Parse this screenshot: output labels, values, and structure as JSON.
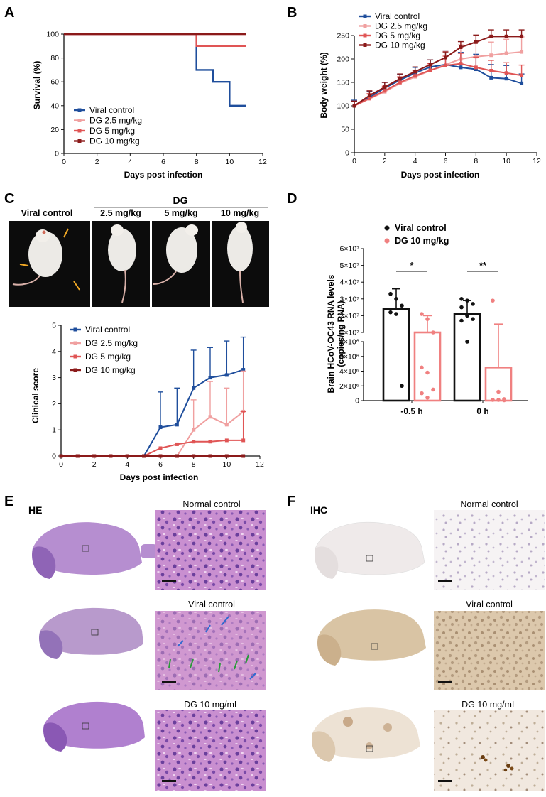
{
  "panels": {
    "A": {
      "label": "A",
      "chart_data": {
        "type": "line",
        "step": true,
        "xlabel": "Days post infection",
        "ylabel": "Survival (%)",
        "xlim": [
          0,
          12
        ],
        "ylim": [
          0,
          100
        ],
        "xticks": [
          0,
          2,
          4,
          6,
          8,
          10,
          12
        ],
        "yticks": [
          0,
          20,
          40,
          60,
          80,
          100
        ],
        "legend_position": "bottom-left",
        "series": [
          {
            "name": "Viral control",
            "color": "#1f4e9c",
            "x": [
              0,
              8,
              9,
              10,
              11
            ],
            "y": [
              100,
              70,
              60,
              40,
              40
            ]
          },
          {
            "name": "DG 2.5 mg/kg",
            "color": "#f0a0a0",
            "x": [
              0,
              8,
              11
            ],
            "y": [
              100,
              100,
              100
            ]
          },
          {
            "name": "DG 5 mg/kg",
            "color": "#e05555",
            "x": [
              0,
              8,
              10,
              11
            ],
            "y": [
              100,
              90,
              90,
              90
            ]
          },
          {
            "name": "DG 10 mg/kg",
            "color": "#8b1a1a",
            "x": [
              0,
              11
            ],
            "y": [
              100,
              100
            ]
          }
        ]
      }
    },
    "B": {
      "label": "B",
      "chart_data": {
        "type": "line",
        "xlabel": "Days post infection",
        "ylabel": "Body weight (%)",
        "xlim": [
          0,
          12
        ],
        "ylim": [
          0,
          250
        ],
        "xticks": [
          0,
          2,
          4,
          6,
          8,
          10,
          12
        ],
        "yticks": [
          0,
          50,
          100,
          150,
          200,
          250
        ],
        "legend_position": "top-left",
        "x": [
          0,
          1,
          2,
          3,
          4,
          5,
          6,
          7,
          8,
          9,
          10,
          11
        ],
        "series": [
          {
            "name": "Viral control",
            "color": "#1f4e9c",
            "y": [
              100,
              118,
              138,
              155,
              170,
              183,
              188,
              182,
              178,
              160,
              158,
              148
            ],
            "err": [
              12,
              12,
              12,
              12,
              12,
              15,
              28,
              32,
              32,
              28,
              28,
              20
            ]
          },
          {
            "name": "DG 2.5 mg/kg",
            "color": "#f0a0a0",
            "y": [
              100,
              115,
              130,
              148,
              162,
              175,
              188,
              200,
              205,
              208,
              212,
              215
            ],
            "err": [
              10,
              10,
              10,
              12,
              12,
              15,
              28,
              30,
              30,
              28,
              30,
              32
            ]
          },
          {
            "name": "DG 5 mg/kg",
            "color": "#e05555",
            "y": [
              100,
              116,
              132,
              150,
              164,
              176,
              186,
              190,
              182,
              175,
              170,
              165
            ],
            "err": [
              10,
              10,
              10,
              12,
              12,
              14,
              20,
              22,
              22,
              22,
              22,
              22
            ]
          },
          {
            "name": "DG 10 mg/kg",
            "color": "#8b1a1a",
            "y": [
              100,
              122,
              140,
              158,
              173,
              188,
              203,
              225,
              236,
              248,
              248,
              248
            ],
            "err": [
              10,
              10,
              10,
              10,
              10,
              10,
              12,
              12,
              15,
              14,
              14,
              14
            ]
          }
        ]
      }
    },
    "C": {
      "label": "C",
      "group_label": "DG",
      "photo_labels": [
        "Viral control",
        "2.5 mg/kg",
        "5 mg/kg",
        "10 mg/kg"
      ],
      "chart_data": {
        "type": "line",
        "xlabel": "Days post infection",
        "ylabel": "Clinical score",
        "xlim": [
          0,
          12
        ],
        "ylim": [
          0,
          5
        ],
        "xticks": [
          0,
          2,
          4,
          6,
          8,
          10,
          12
        ],
        "yticks": [
          0,
          1,
          2,
          3,
          4,
          5
        ],
        "legend_position": "top-left",
        "x": [
          0,
          1,
          2,
          3,
          4,
          5,
          6,
          7,
          8,
          9,
          10,
          11
        ],
        "series": [
          {
            "name": "Viral control",
            "color": "#1f4e9c",
            "y": [
              0,
              0,
              0,
              0,
              0,
              0,
              1.1,
              1.2,
              2.6,
              3.0,
              3.1,
              3.3
            ],
            "err": [
              0,
              0,
              0,
              0,
              0,
              0,
              1.35,
              1.4,
              1.45,
              1.15,
              1.3,
              1.25
            ]
          },
          {
            "name": "DG 2.5 mg/kg",
            "color": "#f0a0a0",
            "y": [
              0,
              0,
              0,
              0,
              0,
              0,
              0,
              0,
              1.0,
              1.5,
              1.2,
              1.7
            ],
            "err": [
              0,
              0,
              0,
              0,
              0,
              0,
              0,
              0,
              1.15,
              1.35,
              1.4,
              1.55
            ]
          },
          {
            "name": "DG 5 mg/kg",
            "color": "#e05555",
            "y": [
              0,
              0,
              0,
              0,
              0,
              0,
              0.3,
              0.45,
              0.55,
              0.55,
              0.6,
              0.6
            ],
            "err": [
              0,
              0,
              0,
              0,
              0,
              0,
              0,
              0,
              0,
              0,
              0,
              1.1
            ]
          },
          {
            "name": "DG 10 mg/kg",
            "color": "#8b1a1a",
            "y": [
              0,
              0,
              0,
              0,
              0,
              0,
              0,
              0,
              0,
              0,
              0,
              0
            ],
            "err": [
              0,
              0,
              0,
              0,
              0,
              0,
              0,
              0,
              0,
              0,
              0,
              0
            ]
          }
        ]
      }
    },
    "D": {
      "label": "D",
      "chart_data": {
        "type": "bar",
        "ylabel_lines": [
          "Brain HCoV-OC43 RNA levels",
          "(copies/ng RNA)"
        ],
        "categories": [
          "-0.5 h",
          "0 h"
        ],
        "legend_position": "top",
        "yticks_upper": [
          "1×10⁷",
          "2×10⁷",
          "3×10⁷",
          "4×10⁷",
          "5×10⁷",
          "6×10⁷"
        ],
        "yticks_lower": [
          "0",
          "2×10⁶",
          "4×10⁶",
          "6×10⁶",
          "8×10⁶"
        ],
        "significance": [
          "*",
          "**"
        ],
        "series": [
          {
            "name": "Viral control",
            "color": "#111111",
            "values": [
              24000000,
              21000000
            ],
            "err": [
              12000000,
              8000000
            ],
            "points": [
              [
                33000000,
                30000000,
                26000000,
                22000000,
                21000000,
                2000000
              ],
              [
                30000000,
                29000000,
                27000000,
                25000000,
                20000000,
                18000000,
                17000000,
                8000000
              ]
            ]
          },
          {
            "name": "DG 10 mg/kg",
            "color": "#f08080",
            "values": [
              10000000,
              4500000
            ],
            "err": [
              10000000,
              10500000
            ],
            "points": [
              [
                21000000,
                18000000,
                9500000,
                4500000,
                3800000,
                1500000,
                1000000,
                400000
              ],
              [
                29000000,
                1200000,
                200000,
                100000,
                100000,
                50000
              ]
            ]
          }
        ]
      }
    },
    "E": {
      "label": "E",
      "stain": "HE",
      "rows": [
        "Normal control",
        "Viral control",
        "DG 10 mg/mL"
      ]
    },
    "F": {
      "label": "F",
      "stain": "IHC",
      "rows": [
        "Normal control",
        "Viral control",
        "DG 10 mg/mL"
      ]
    }
  }
}
